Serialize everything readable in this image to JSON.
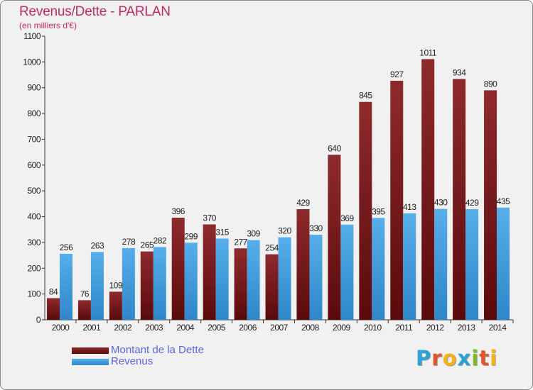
{
  "title": "Revenus/Dette - PARLAN",
  "subtitle": "(en milliers d'€)",
  "logo": {
    "letters": [
      "P",
      "r",
      "o",
      "x",
      "i",
      "t",
      "i"
    ],
    "colors": [
      "#2aa3d8",
      "#e3542a",
      "#f7b21b",
      "#2aa3d8",
      "#7fba27",
      "#e3542a",
      "#f7b21b"
    ]
  },
  "colors": {
    "dette": "#7d1f22",
    "revenus": "#4aa0e2",
    "title": "#c0286a",
    "legend_text": "#5a66e0"
  },
  "chart_data": {
    "type": "bar",
    "categories": [
      "2000",
      "2001",
      "2002",
      "2003",
      "2004",
      "2005",
      "2006",
      "2007",
      "2008",
      "2009",
      "2010",
      "2011",
      "2012",
      "2013",
      "2014"
    ],
    "series": [
      {
        "name": "Montant de la Dette",
        "values": [
          84,
          76,
          109,
          265,
          396,
          370,
          277,
          254,
          429,
          640,
          845,
          927,
          1011,
          934,
          890
        ]
      },
      {
        "name": "Revenus",
        "values": [
          256,
          263,
          278,
          282,
          299,
          315,
          309,
          320,
          330,
          369,
          395,
          413,
          430,
          429,
          435
        ]
      }
    ],
    "yticks": [
      0,
      100,
      200,
      300,
      400,
      500,
      600,
      700,
      800,
      900,
      1000,
      1100
    ],
    "ylim": [
      0,
      1100
    ],
    "grid": false,
    "legend": "bottom-left"
  }
}
